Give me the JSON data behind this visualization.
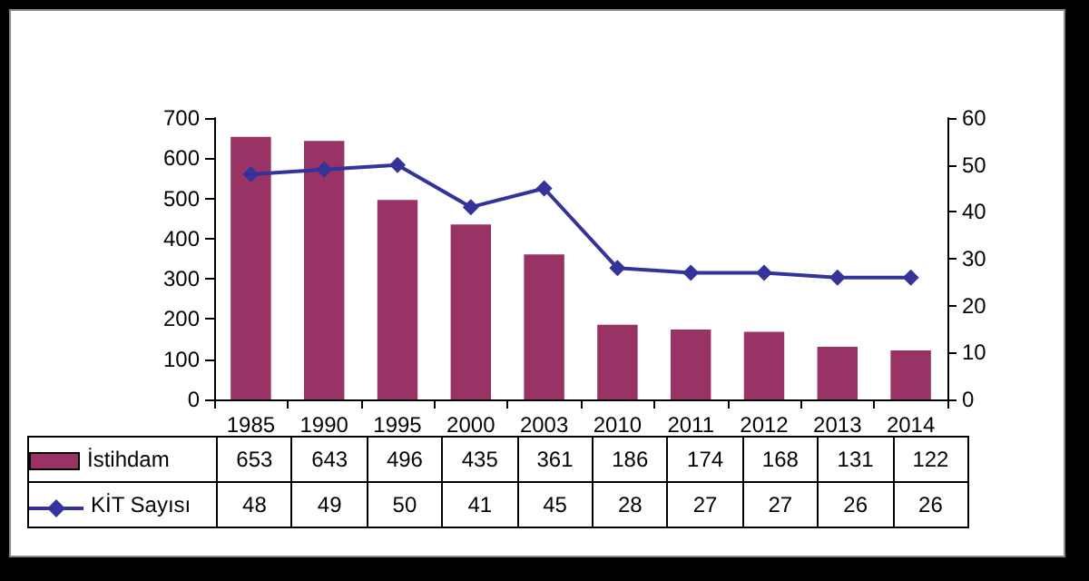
{
  "chart_data": {
    "type": "bar",
    "categories": [
      "1985",
      "1990",
      "1995",
      "2000",
      "2003",
      "2010",
      "2011",
      "2012",
      "2013",
      "2014"
    ],
    "series": [
      {
        "name": "İstihdam",
        "color": "#993366",
        "values": [
          653,
          643,
          496,
          435,
          361,
          186,
          174,
          168,
          131,
          122
        ]
      },
      {
        "name": "KİT Sayısı",
        "type": "line",
        "axis": "y2",
        "color": "#333399",
        "values": [
          48,
          49,
          50,
          41,
          45,
          28,
          27,
          27,
          26,
          26
        ]
      }
    ],
    "ylim": [
      0,
      700
    ],
    "yticks": [
      0,
      100,
      200,
      300,
      400,
      500,
      600,
      700
    ],
    "y2lim": [
      0,
      60
    ],
    "y2ticks": [
      0,
      10,
      20,
      30,
      40,
      50,
      60
    ],
    "grid": false,
    "legend": "bottom",
    "data_labels": true,
    "marker": "diamond",
    "line_style": "solid"
  }
}
